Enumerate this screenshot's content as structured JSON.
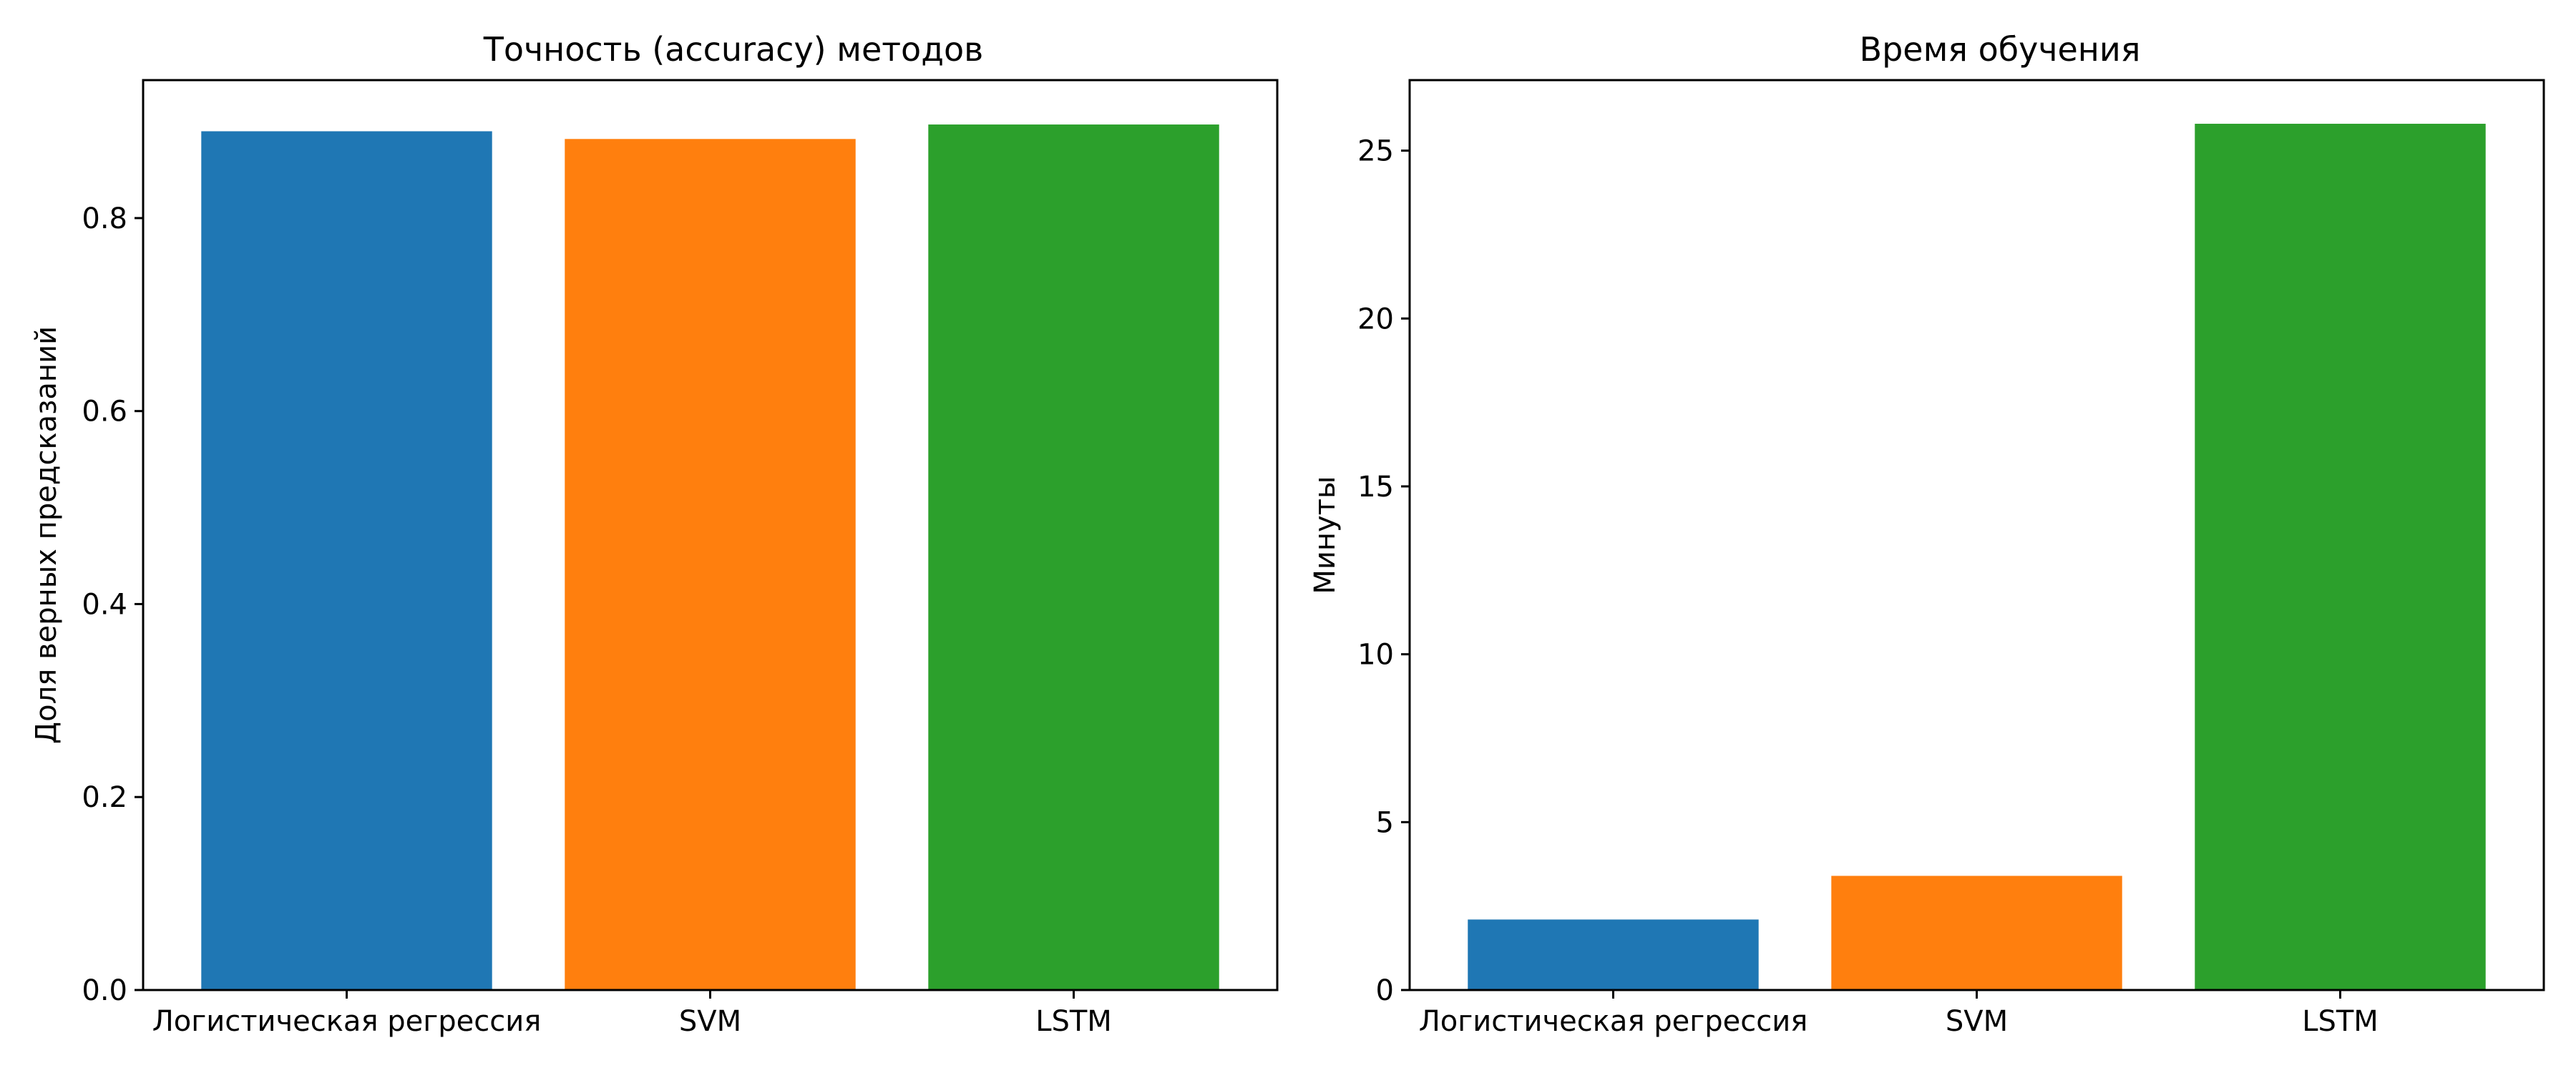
{
  "chart_data": [
    {
      "type": "bar",
      "title": "Точность (accuracy) методов",
      "xlabel": "",
      "ylabel": "Доля верных предсказаний",
      "categories": [
        "Логистическая регрессия",
        "SVM",
        "LSTM"
      ],
      "values": [
        0.89,
        0.882,
        0.897
      ],
      "colors": [
        "#1f77b4",
        "#ff7f0e",
        "#2ca02c"
      ],
      "ylim": [
        0,
        0.943
      ],
      "yticks": [
        0.0,
        0.2,
        0.4,
        0.6,
        0.8
      ],
      "ytick_labels": [
        "0.0",
        "0.2",
        "0.4",
        "0.6",
        "0.8"
      ],
      "grid": false
    },
    {
      "type": "bar",
      "title": "Время обучения",
      "xlabel": "",
      "ylabel": "Минуты",
      "categories": [
        "Логистическая регрессия",
        "SVM",
        "LSTM"
      ],
      "values": [
        2.1,
        3.4,
        25.8
      ],
      "colors": [
        "#1f77b4",
        "#ff7f0e",
        "#2ca02c"
      ],
      "ylim": [
        0,
        27.1
      ],
      "yticks": [
        0,
        5,
        10,
        15,
        20,
        25
      ],
      "ytick_labels": [
        "0",
        "5",
        "10",
        "15",
        "20",
        "25"
      ],
      "grid": false
    }
  ]
}
